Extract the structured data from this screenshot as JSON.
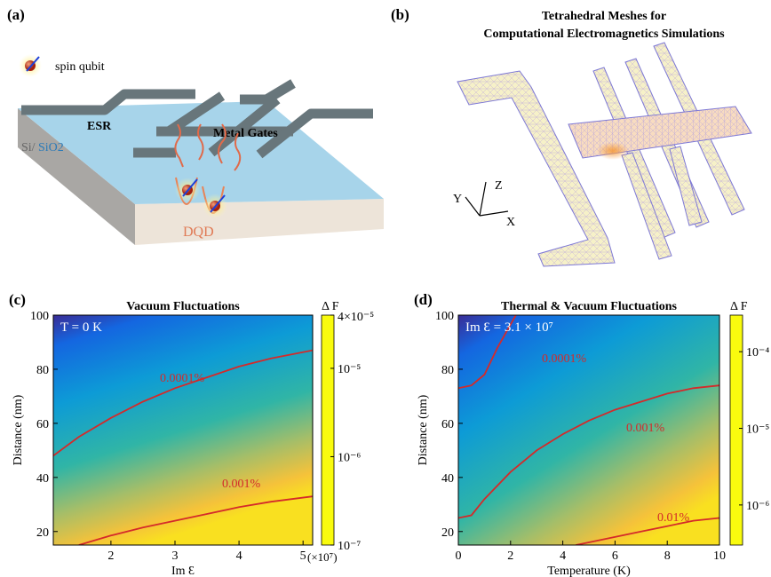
{
  "panels": {
    "a": {
      "label": "(a)",
      "legend": "spin qubit",
      "esr": "ESR",
      "gates": "Metal Gates",
      "si": "Si/",
      "sio2": "SiO2",
      "dqd": "DQD"
    },
    "b": {
      "label": "(b)",
      "title": [
        "Tetrahedral Meshes for",
        "Computational Electromagnetics Simulations"
      ],
      "axes": [
        "X",
        "Y",
        "Z"
      ]
    }
  },
  "chart_data": [
    {
      "type": "heatmap",
      "panel_label": "(c)",
      "title": "Vacuum Fluctuations",
      "annotation": "T = 0 K",
      "xlabel": "Im Ɛ",
      "x_multiplier": "(×10⁷)",
      "ylabel": "Distance (nm)",
      "xlim": [
        1.1,
        5.15
      ],
      "xticks": [
        2,
        3,
        4,
        5
      ],
      "ylim": [
        15,
        100
      ],
      "yticks": [
        20,
        40,
        60,
        80,
        100
      ],
      "colorbar": {
        "label": "Δ F",
        "log": true,
        "lim": [
          1e-07,
          4e-05
        ],
        "ticks": [
          {
            "value": 1e-07,
            "label": "10⁻⁷"
          },
          {
            "value": 1e-06,
            "label": "10⁻⁶"
          },
          {
            "value": 1e-05,
            "label": "10⁻⁵"
          },
          {
            "value": 4e-05,
            "label": "4×10⁻⁵"
          }
        ]
      },
      "contours": [
        {
          "label": "0.0001%",
          "color": "#d42a2a",
          "x": [
            1.1,
            1.5,
            2,
            2.5,
            3,
            3.5,
            4,
            4.5,
            5.15
          ],
          "y": [
            48,
            55,
            62,
            68,
            73,
            77,
            81,
            84,
            87
          ]
        },
        {
          "label": "0.001%",
          "color": "#d42a2a",
          "x": [
            1.5,
            2,
            2.5,
            3,
            3.5,
            4,
            4.5,
            5.15
          ],
          "y": [
            15,
            18.5,
            21.5,
            24,
            26.5,
            29,
            31,
            33
          ]
        }
      ]
    },
    {
      "type": "heatmap",
      "panel_label": "(d)",
      "title": "Thermal & Vacuum Fluctuations",
      "annotation": "Im Ɛ = 3.1 × 10⁷",
      "xlabel": "Temperature (K)",
      "ylabel": "Distance (nm)",
      "xlim": [
        0,
        10
      ],
      "xticks": [
        0,
        2,
        4,
        6,
        8,
        10
      ],
      "ylim": [
        15,
        100
      ],
      "yticks": [
        20,
        40,
        60,
        80,
        100
      ],
      "colorbar": {
        "label": "Δ F",
        "log": true,
        "lim": [
          3e-07,
          0.0003
        ],
        "ticks": [
          {
            "value": 1e-06,
            "label": "10⁻⁶"
          },
          {
            "value": 1e-05,
            "label": "10⁻⁵"
          },
          {
            "value": 0.0001,
            "label": "10⁻⁴"
          }
        ]
      },
      "contours": [
        {
          "label": "0.0001%",
          "color": "#d42a2a",
          "x": [
            0,
            0.5,
            1,
            1.5,
            2.2
          ],
          "y": [
            73,
            74,
            78,
            88,
            100
          ]
        },
        {
          "label": "0.001%",
          "color": "#d42a2a",
          "x": [
            0,
            0.5,
            1,
            2,
            3,
            4,
            5,
            6,
            7,
            8,
            9,
            10
          ],
          "y": [
            25,
            26,
            32,
            42,
            50,
            56,
            61,
            65,
            68,
            71,
            73,
            74
          ]
        },
        {
          "label": "0.01%",
          "color": "#d42a2a",
          "x": [
            4.5,
            5,
            6,
            7,
            8,
            9,
            10
          ],
          "y": [
            15,
            16,
            18,
            20,
            22,
            24,
            25
          ]
        }
      ]
    }
  ]
}
